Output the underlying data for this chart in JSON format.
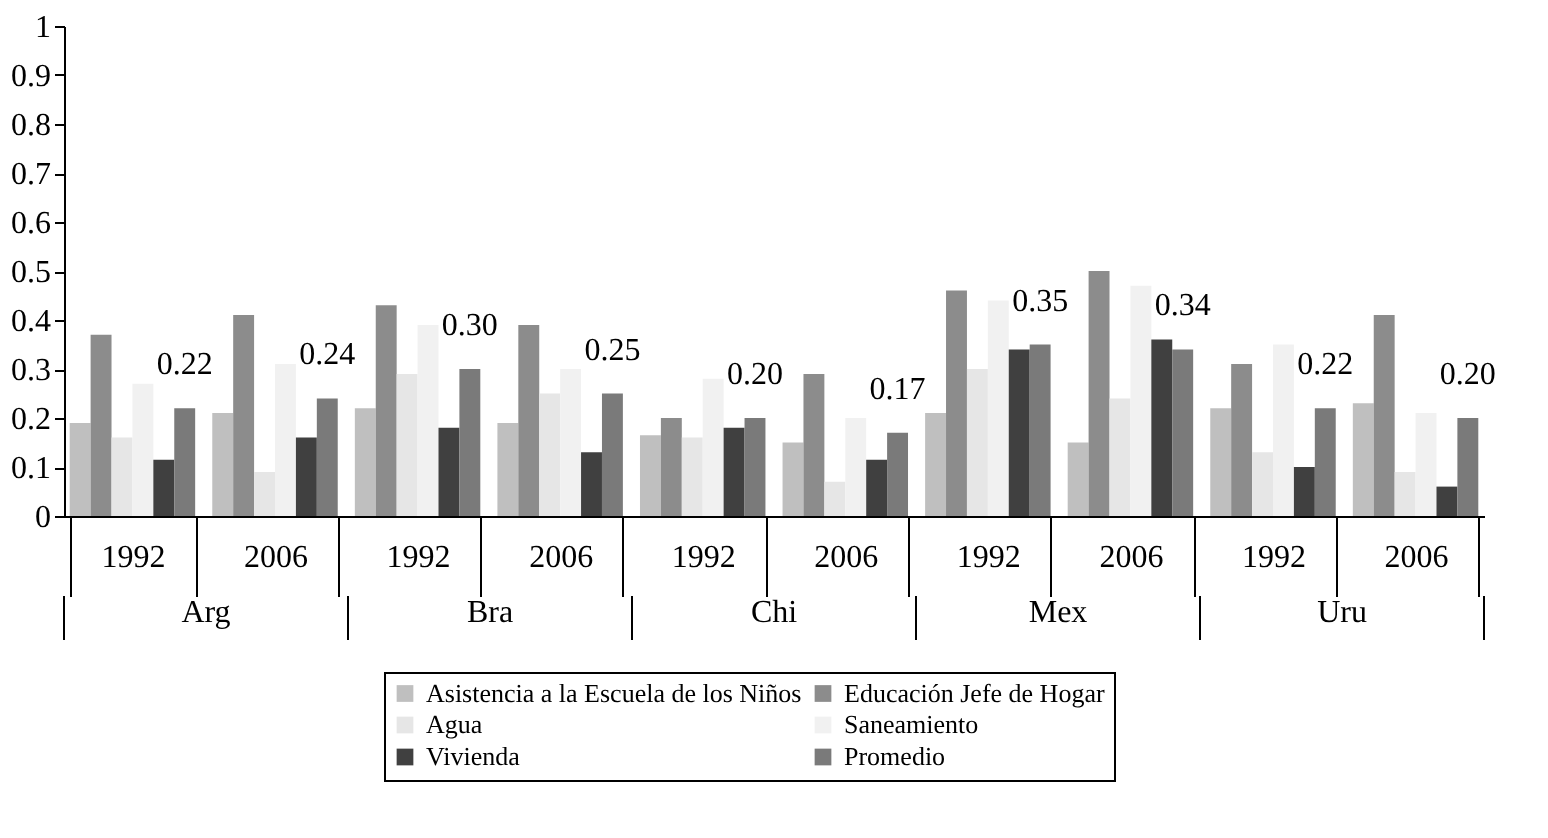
{
  "chart_data": {
    "type": "bar",
    "categories": [
      "1992",
      "2006",
      "1992",
      "2006",
      "1992",
      "2006",
      "1992",
      "2006",
      "1992",
      "2006"
    ],
    "series": [
      {
        "name": "Asistencia a la Escuela de los Niños",
        "color": "#bfbfbf",
        "values": [
          0.19,
          0.21,
          0.22,
          0.19,
          0.165,
          0.15,
          0.21,
          0.15,
          0.22,
          0.23
        ]
      },
      {
        "name": "Educación Jefe de Hogar",
        "color": "#8c8c8c",
        "values": [
          0.37,
          0.41,
          0.43,
          0.39,
          0.2,
          0.29,
          0.46,
          0.5,
          0.31,
          0.41
        ]
      },
      {
        "name": "Agua",
        "color": "#e6e6e6",
        "values": [
          0.16,
          0.09,
          0.29,
          0.25,
          0.16,
          0.07,
          0.3,
          0.24,
          0.13,
          0.09
        ]
      },
      {
        "name": "Saneamiento",
        "color": "#f1f1f1",
        "values": [
          0.27,
          0.31,
          0.39,
          0.3,
          0.28,
          0.2,
          0.44,
          0.47,
          0.35,
          0.21
        ]
      },
      {
        "name": "Vivienda",
        "color": "#404040",
        "values": [
          0.115,
          0.16,
          0.18,
          0.13,
          0.18,
          0.115,
          0.34,
          0.36,
          0.1,
          0.06
        ]
      },
      {
        "name": "Promedio",
        "color": "#7a7a7a",
        "values": [
          0.22,
          0.24,
          0.3,
          0.25,
          0.2,
          0.17,
          0.35,
          0.34,
          0.22,
          0.2
        ],
        "value_labels": [
          "0.22",
          "0.24",
          "0.30",
          "0.25",
          "0.20",
          "0.17",
          "0.35",
          "0.34",
          "0.22",
          "0.20"
        ]
      }
    ],
    "annotations": [
      "Arg",
      "Bra",
      "Chi",
      "Mex",
      "Uru"
    ],
    "ylim": [
      0,
      1
    ],
    "yticks": [
      0,
      0.1,
      0.2,
      0.3,
      0.4,
      0.5,
      0.6,
      0.7,
      0.8,
      0.9,
      1
    ],
    "grid": false,
    "legend": "bottom"
  }
}
